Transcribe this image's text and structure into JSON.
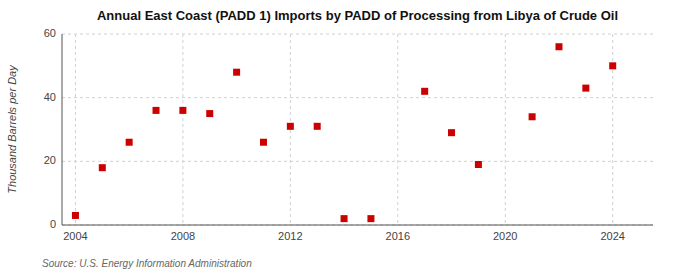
{
  "chart_data": {
    "type": "scatter",
    "title": "Annual East Coast (PADD 1) Imports by PADD of Processing from Libya of Crude Oil",
    "ylabel": "Thousand Barrels per Day",
    "annotations": [
      "Source: U.S. Energy Information Administration"
    ],
    "x": [
      2004,
      2005,
      2006,
      2007,
      2008,
      2009,
      2010,
      2011,
      2012,
      2013,
      2014,
      2015,
      2017,
      2018,
      2019,
      2021,
      2022,
      2023,
      2024
    ],
    "values": [
      3,
      18,
      26,
      36,
      36,
      35,
      48,
      26,
      31,
      31,
      2,
      2,
      42,
      29,
      19,
      34,
      56,
      43,
      50
    ],
    "color": "#cc0000",
    "marker": "square",
    "xlim": [
      2003.5,
      2025.5
    ],
    "ylim": [
      0,
      60
    ],
    "xticks": [
      2004,
      2008,
      2012,
      2016,
      2020,
      2024
    ],
    "yticks": [
      0,
      20,
      40,
      60
    ],
    "grid": true
  }
}
